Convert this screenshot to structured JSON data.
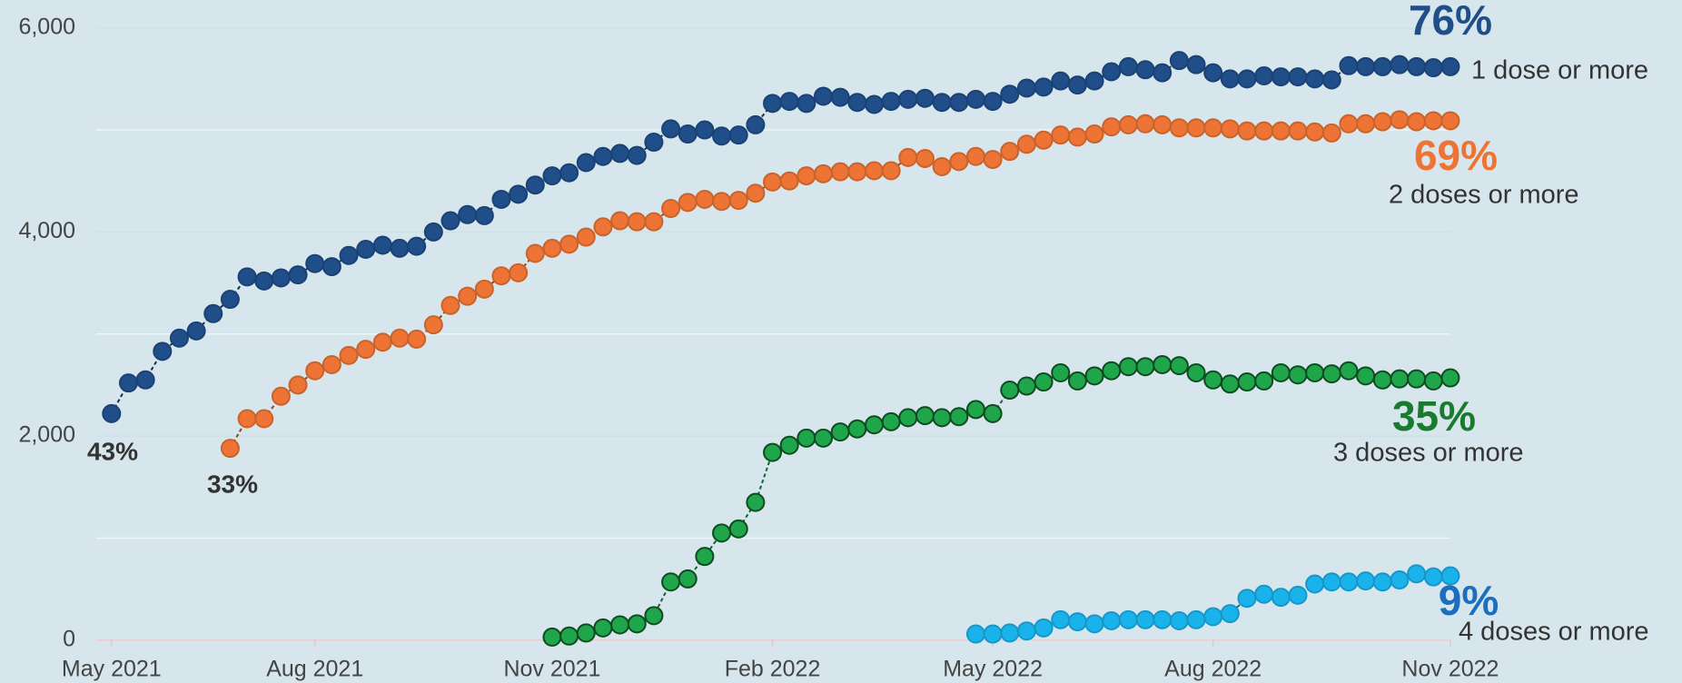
{
  "chart_data": {
    "type": "line",
    "categories": [
      "May 2021",
      null,
      null,
      null,
      null,
      null,
      null,
      null,
      null,
      null,
      null,
      null,
      "Aug 2021",
      null,
      null,
      null,
      null,
      null,
      null,
      null,
      null,
      null,
      null,
      null,
      null,
      null,
      "Nov 2021",
      null,
      null,
      null,
      null,
      null,
      null,
      null,
      null,
      null,
      null,
      null,
      null,
      "Feb 2022",
      null,
      null,
      null,
      null,
      null,
      null,
      null,
      null,
      null,
      null,
      null,
      null,
      "May 2022",
      null,
      null,
      null,
      null,
      null,
      null,
      null,
      null,
      null,
      null,
      null,
      null,
      "Aug 2022",
      null,
      null,
      null,
      null,
      null,
      null,
      null,
      null,
      null,
      null,
      null,
      null,
      null,
      "Nov 2022"
    ],
    "ylim": [
      0,
      6000
    ],
    "yticks": [
      {
        "value": 0,
        "label": "0"
      },
      {
        "value": 2000,
        "label": "2,000"
      },
      {
        "value": 4000,
        "label": "4,000"
      },
      {
        "value": 6000,
        "label": "6,000"
      }
    ],
    "minor_yticks": [
      1000,
      3000,
      5000
    ],
    "grid": true,
    "series": [
      {
        "name": "1 dose or more",
        "color": "#1f4e89",
        "end_label": "76%",
        "end_label_color": "#1f4e89",
        "start_label": "43%",
        "values": [
          2220,
          2520,
          2550,
          2830,
          2960,
          3030,
          3200,
          3340,
          3560,
          3520,
          3550,
          3580,
          3690,
          3660,
          3770,
          3830,
          3870,
          3840,
          3860,
          4000,
          4110,
          4170,
          4160,
          4320,
          4370,
          4460,
          4550,
          4580,
          4680,
          4740,
          4770,
          4750,
          4880,
          5010,
          4960,
          5000,
          4940,
          4950,
          5050,
          5260,
          5280,
          5260,
          5330,
          5320,
          5270,
          5250,
          5280,
          5300,
          5310,
          5270,
          5270,
          5300,
          5280,
          5350,
          5410,
          5420,
          5480,
          5440,
          5480,
          5570,
          5620,
          5590,
          5560,
          5680,
          5640,
          5560,
          5500,
          5500,
          5530,
          5520,
          5520,
          5500,
          5490,
          5630,
          5620,
          5620,
          5640,
          5620,
          5610,
          5620
        ]
      },
      {
        "name": "2 doses or more",
        "color": "#ed7434",
        "end_label": "69%",
        "end_label_color": "#ed7434",
        "start_label": "33%",
        "values": [
          null,
          null,
          null,
          null,
          null,
          null,
          null,
          1880,
          2170,
          2170,
          2390,
          2500,
          2640,
          2700,
          2790,
          2850,
          2920,
          2960,
          2950,
          3090,
          3280,
          3370,
          3440,
          3570,
          3600,
          3790,
          3840,
          3880,
          3950,
          4050,
          4110,
          4100,
          4100,
          4230,
          4290,
          4320,
          4300,
          4310,
          4380,
          4490,
          4500,
          4550,
          4570,
          4590,
          4590,
          4600,
          4600,
          4730,
          4720,
          4640,
          4690,
          4740,
          4710,
          4790,
          4860,
          4900,
          4950,
          4930,
          4960,
          5030,
          5050,
          5060,
          5050,
          5020,
          5020,
          5020,
          5010,
          4990,
          4990,
          4990,
          4990,
          4980,
          4970,
          5060,
          5060,
          5080,
          5100,
          5080,
          5090,
          5090
        ]
      },
      {
        "name": "3 doses or more",
        "color": "#1fa64a",
        "end_label": "35%",
        "end_label_color": "#1a7a2e",
        "values": [
          null,
          null,
          null,
          null,
          null,
          null,
          null,
          null,
          null,
          null,
          null,
          null,
          null,
          null,
          null,
          null,
          null,
          null,
          null,
          null,
          null,
          null,
          null,
          null,
          null,
          null,
          30,
          40,
          70,
          120,
          150,
          160,
          240,
          570,
          600,
          820,
          1050,
          1090,
          1350,
          1840,
          1910,
          1980,
          1980,
          2040,
          2070,
          2110,
          2140,
          2180,
          2200,
          2180,
          2190,
          2260,
          2220,
          2450,
          2490,
          2530,
          2620,
          2540,
          2590,
          2640,
          2680,
          2680,
          2700,
          2690,
          2620,
          2550,
          2510,
          2530,
          2540,
          2620,
          2600,
          2620,
          2610,
          2640,
          2590,
          2550,
          2560,
          2560,
          2540,
          2570
        ]
      },
      {
        "name": "4 doses or more",
        "color": "#1ab2ea",
        "end_label": "9%",
        "end_label_color": "#1a6fc0",
        "values": [
          null,
          null,
          null,
          null,
          null,
          null,
          null,
          null,
          null,
          null,
          null,
          null,
          null,
          null,
          null,
          null,
          null,
          null,
          null,
          null,
          null,
          null,
          null,
          null,
          null,
          null,
          null,
          null,
          null,
          null,
          null,
          null,
          null,
          null,
          null,
          null,
          null,
          null,
          null,
          null,
          null,
          null,
          null,
          null,
          null,
          null,
          null,
          null,
          null,
          null,
          null,
          60,
          60,
          70,
          90,
          120,
          200,
          180,
          160,
          190,
          200,
          200,
          200,
          190,
          200,
          230,
          260,
          410,
          450,
          420,
          440,
          550,
          570,
          570,
          580,
          570,
          590,
          650,
          620,
          630
        ]
      }
    ]
  }
}
